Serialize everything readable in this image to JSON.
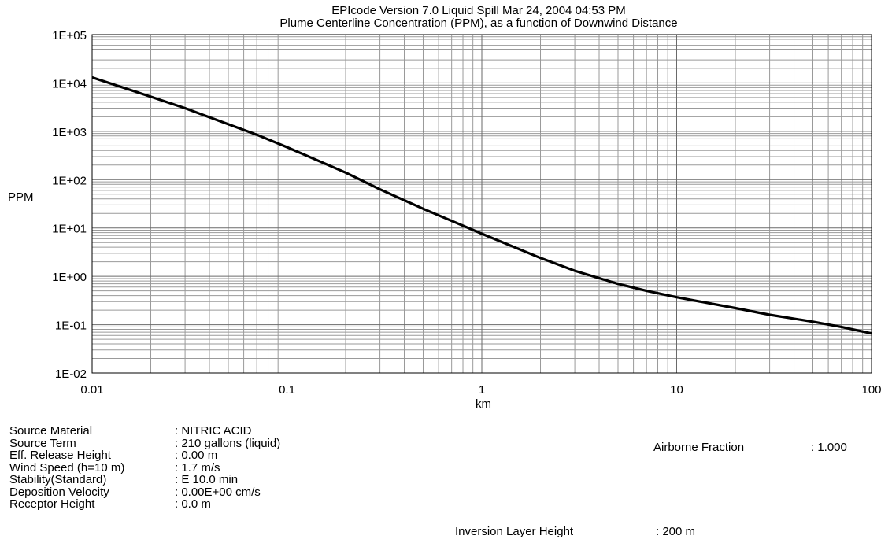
{
  "chart_data": {
    "type": "line",
    "title": "EPIcode  Version 7.0 Liquid Spill  Mar 24, 2004 04:53 PM",
    "subtitle": "Plume Centerline Concentration (PPM), as a function of Downwind Distance",
    "xlabel": "km",
    "ylabel": "PPM",
    "xscale": "log",
    "yscale": "log",
    "xlim": [
      0.01,
      100
    ],
    "ylim": [
      0.01,
      100000
    ],
    "grid": true,
    "x_tick_labels": [
      "0.01",
      "0.1",
      "1",
      "10",
      "100"
    ],
    "y_tick_labels": [
      "1E+05",
      "1E+04",
      "1E+03",
      "1E+02",
      "1E+01",
      "1E+00",
      "1E-01",
      "1E-02"
    ],
    "x": [
      0.01,
      0.02,
      0.03,
      0.05,
      0.07,
      0.1,
      0.2,
      0.3,
      0.5,
      0.7,
      1,
      2,
      3,
      5,
      7,
      10,
      20,
      30,
      50,
      70,
      100
    ],
    "series": [
      {
        "values": [
          13000,
          5200,
          3000,
          1400,
          850,
          470,
          140,
          63,
          25,
          14,
          7.6,
          2.4,
          1.3,
          0.7,
          0.5,
          0.37,
          0.22,
          0.16,
          0.115,
          0.09,
          0.066
        ]
      }
    ]
  },
  "parameters": [
    {
      "label": "Source Material",
      "value": ": NITRIC ACID"
    },
    {
      "label": "Source Term",
      "value": ": 210 gallons (liquid)"
    },
    {
      "label": "Eff. Release Height",
      "value": ": 0.00 m"
    },
    {
      "label": "Wind Speed (h=10 m)",
      "value": ": 1.7 m/s"
    },
    {
      "label": "Stability(Standard)",
      "value": ": E  10.0 min"
    },
    {
      "label": "Deposition Velocity",
      "value": ": 0.00E+00 cm/s"
    },
    {
      "label": "Receptor Height",
      "value": ": 0.0 m"
    }
  ],
  "airborne_fraction": {
    "label": "Airborne Fraction",
    "value": ": 1.000"
  },
  "inversion_layer": {
    "label": "Inversion Layer Height",
    "value": ":  200 m"
  }
}
